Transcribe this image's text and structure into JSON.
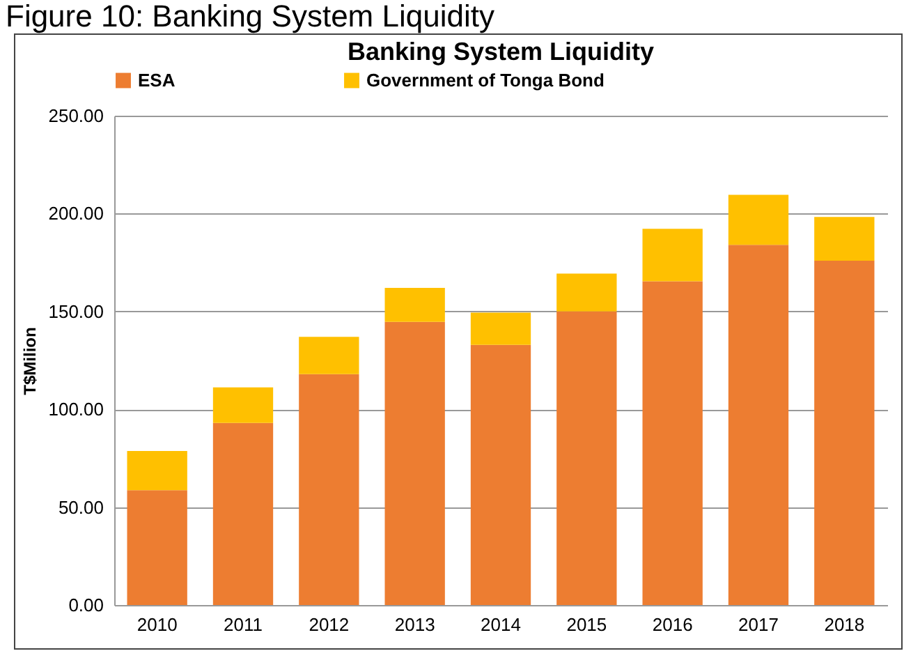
{
  "chart_data": {
    "type": "bar",
    "title": "Banking System Liquidity",
    "annotations": [
      "Figure 10: Banking System Liquidity"
    ],
    "ylabel": "T$Milion",
    "stacked": true,
    "grid": "y",
    "legend": "top",
    "categories": [
      "2010",
      "2011",
      "2012",
      "2013",
      "2014",
      "2015",
      "2016",
      "2017",
      "2018"
    ],
    "series": [
      {
        "name": "ESA",
        "color": "#ed7d31",
        "values": [
          58.7,
          93,
          118,
          144.7,
          132.9,
          150,
          165.4,
          184,
          175.9
        ]
      },
      {
        "name": "Government of Tonga Bond",
        "color": "#ffc000",
        "values": [
          20,
          18.2,
          19,
          17.3,
          16.5,
          19.3,
          26.8,
          25.6,
          22.4
        ]
      }
    ],
    "ylim": [
      0,
      250
    ],
    "yticks": [
      {
        "value": 0,
        "label": "0.00"
      },
      {
        "value": 50,
        "label": "50.00"
      },
      {
        "value": 100,
        "label": "100.00"
      },
      {
        "value": 150,
        "label": "150.00"
      },
      {
        "value": 200,
        "label": "200.00"
      },
      {
        "value": 250,
        "label": "250.00"
      }
    ]
  }
}
